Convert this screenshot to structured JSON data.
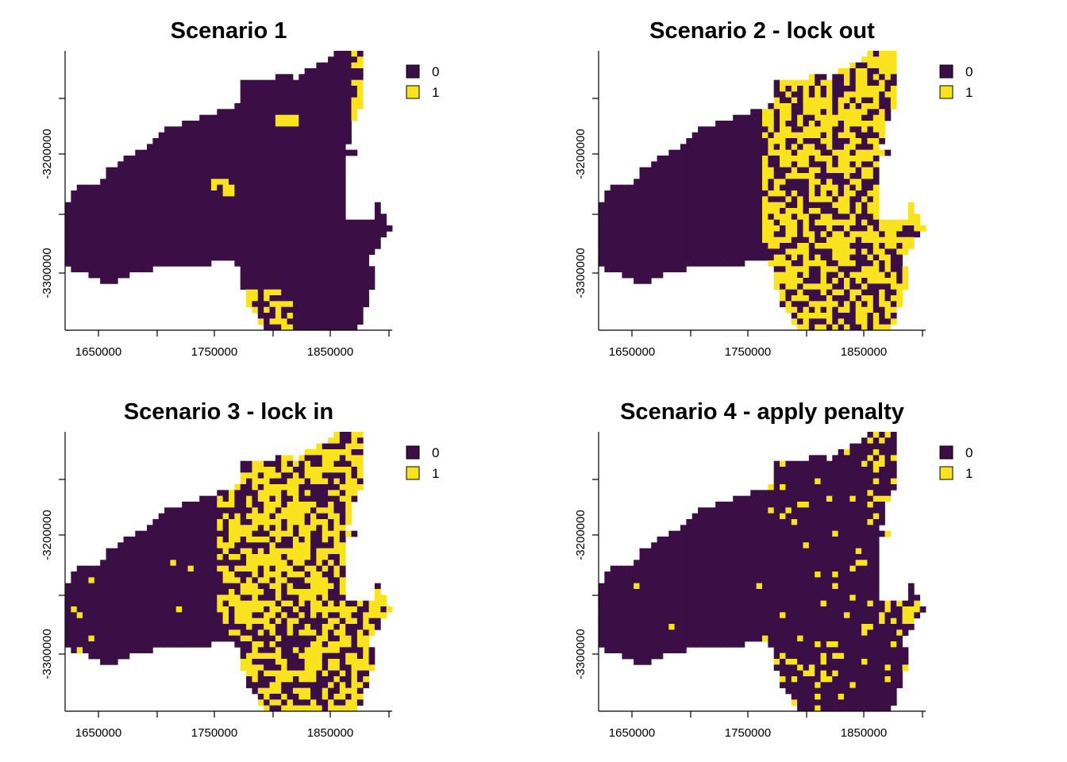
{
  "chart_data": [
    {
      "type": "heatmap",
      "title": "Scenario 1",
      "xlabel": "",
      "ylabel": "",
      "x_ticks": [
        1650000,
        1750000,
        1850000
      ],
      "y_ticks": [
        -3200000,
        -3300000
      ],
      "xlim": [
        1622000,
        1904000
      ],
      "ylim": [
        -3350000,
        -3110000
      ],
      "legend": {
        "position": "right",
        "entries": [
          {
            "label": "0",
            "color": "#3b0f45"
          },
          {
            "label": "1",
            "color": "#f9e21e"
          }
        ]
      },
      "selected_fraction": 0.04
    },
    {
      "type": "heatmap",
      "title": "Scenario 2 - lock out",
      "xlabel": "",
      "ylabel": "",
      "x_ticks": [
        1650000,
        1750000,
        1850000
      ],
      "y_ticks": [
        -3200000,
        -3300000
      ],
      "xlim": [
        1622000,
        1904000
      ],
      "ylim": [
        -3350000,
        -3110000
      ],
      "legend": {
        "position": "right",
        "entries": [
          {
            "label": "0",
            "color": "#3b0f45"
          },
          {
            "label": "1",
            "color": "#f9e21e"
          }
        ]
      },
      "selected_fraction": 0.55
    },
    {
      "type": "heatmap",
      "title": "Scenario 3 - lock in",
      "xlabel": "",
      "ylabel": "",
      "x_ticks": [
        1650000,
        1750000,
        1850000
      ],
      "y_ticks": [
        -3200000,
        -3300000
      ],
      "xlim": [
        1622000,
        1904000
      ],
      "ylim": [
        -3350000,
        -3110000
      ],
      "legend": {
        "position": "right",
        "entries": [
          {
            "label": "0",
            "color": "#3b0f45"
          },
          {
            "label": "1",
            "color": "#f9e21e"
          }
        ]
      },
      "selected_fraction": 0.5
    },
    {
      "type": "heatmap",
      "title": "Scenario 4 - apply penalty",
      "xlabel": "",
      "ylabel": "",
      "x_ticks": [
        1650000,
        1750000,
        1850000
      ],
      "y_ticks": [
        -3200000,
        -3300000
      ],
      "xlim": [
        1622000,
        1904000
      ],
      "ylim": [
        -3350000,
        -3110000
      ],
      "legend": {
        "position": "right",
        "entries": [
          {
            "label": "0",
            "color": "#3b0f45"
          },
          {
            "label": "1",
            "color": "#f9e21e"
          }
        ]
      },
      "selected_fraction": 0.14
    }
  ]
}
